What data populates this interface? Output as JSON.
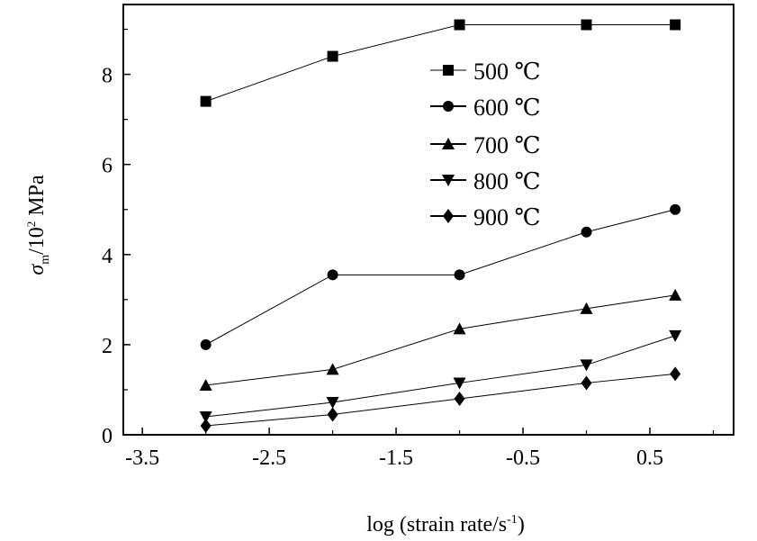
{
  "chart_data": {
    "type": "line",
    "title": "",
    "xlabel": "log (strain rate/s",
    "xlabel_sup": "-1",
    "xlabel_close": ")",
    "ylabel_sigma": "σ",
    "ylabel_sub": "m",
    "ylabel_rest": "/10",
    "ylabel_sup": "2",
    "ylabel_unit": " MPa",
    "xlim": [
      -3.65,
      1.16
    ],
    "ylim": [
      0,
      9.55
    ],
    "xticks": [
      -3.5,
      -2.5,
      -1.5,
      -0.5,
      0.5
    ],
    "xtick_labels": [
      "-3.5",
      "-2.5",
      "-1.5",
      "-0.5",
      "0.5"
    ],
    "yticks": [
      0,
      2,
      4,
      6,
      8
    ],
    "ytick_labels": [
      "0",
      "2",
      "4",
      "6",
      "8"
    ],
    "x": [
      -3,
      -2,
      -1,
      0,
      0.7
    ],
    "legend_position": "upper-center",
    "series": [
      {
        "name": "500 ℃",
        "marker": "square",
        "values": [
          7.4,
          8.4,
          9.1,
          9.1,
          9.1
        ]
      },
      {
        "name": "600 ℃",
        "marker": "circle",
        "values": [
          2.0,
          3.55,
          3.55,
          4.5,
          5.0
        ]
      },
      {
        "name": "700 ℃",
        "marker": "triangle-up",
        "values": [
          1.1,
          1.45,
          2.35,
          2.8,
          3.1
        ]
      },
      {
        "name": "800 ℃",
        "marker": "triangle-down",
        "values": [
          0.4,
          0.72,
          1.15,
          1.55,
          2.2
        ]
      },
      {
        "name": "900 ℃",
        "marker": "diamond",
        "values": [
          0.2,
          0.45,
          0.8,
          1.15,
          1.35
        ]
      }
    ]
  }
}
